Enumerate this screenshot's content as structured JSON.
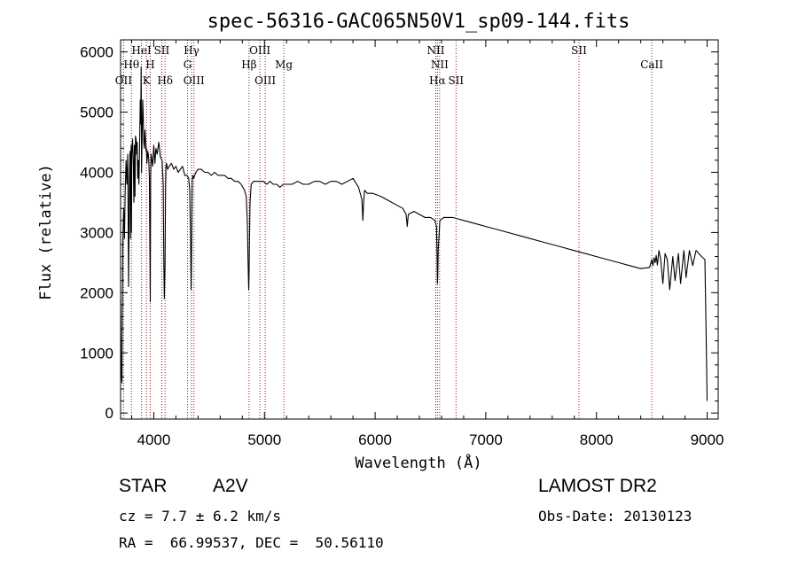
{
  "chart_data": {
    "type": "line",
    "title": "spec-56316-GAC065N50V1_sp09-144.fits",
    "xlabel": "Wavelength (Å)",
    "ylabel": "Flux (relative)",
    "xlim": [
      3700,
      9100
    ],
    "ylim": [
      -100,
      6200
    ],
    "xticks": [
      4000,
      5000,
      6000,
      7000,
      8000,
      9000
    ],
    "yticks": [
      0,
      1000,
      2000,
      3000,
      4000,
      5000,
      6000
    ],
    "grid": false,
    "line_color": "#000000",
    "marker_color": "#8b1a1a",
    "series": [
      {
        "x": [
          3700,
          3705,
          3712,
          3720,
          3728,
          3735,
          3742,
          3750,
          3757,
          3765,
          3772,
          3780,
          3786,
          3790,
          3795,
          3798,
          3802,
          3808,
          3815,
          3820,
          3825,
          3830,
          3835,
          3840,
          3845,
          3850,
          3855,
          3860,
          3866,
          3872,
          3878,
          3882,
          3886,
          3890,
          3895,
          3900,
          3905,
          3910,
          3915,
          3920,
          3925,
          3930,
          3934,
          3938,
          3942,
          3946,
          3950,
          3955,
          3960,
          3965,
          3968,
          3970,
          3972,
          3976,
          3980,
          3990,
          4000,
          4010,
          4020,
          4030,
          4045,
          4060,
          4075,
          4085,
          4090,
          4095,
          4101,
          4106,
          4110,
          4115,
          4125,
          4140,
          4160,
          4180,
          4200,
          4220,
          4240,
          4260,
          4280,
          4300,
          4315,
          4325,
          4333,
          4337,
          4340,
          4343,
          4347,
          4352,
          4360,
          4380,
          4400,
          4430,
          4460,
          4490,
          4520,
          4550,
          4580,
          4610,
          4640,
          4670,
          4700,
          4730,
          4760,
          4790,
          4820,
          4835,
          4845,
          4852,
          4858,
          4861,
          4864,
          4870,
          4880,
          4900,
          4930,
          4960,
          4990,
          5020,
          5050,
          5080,
          5110,
          5140,
          5170,
          5200,
          5250,
          5300,
          5350,
          5400,
          5450,
          5500,
          5550,
          5600,
          5650,
          5700,
          5750,
          5800,
          5850,
          5880,
          5890,
          5896,
          5905,
          5930,
          5980,
          6050,
          6100,
          6150,
          6200,
          6250,
          6280,
          6290,
          6300,
          6350,
          6400,
          6450,
          6500,
          6540,
          6555,
          6560,
          6563,
          6566,
          6570,
          6585,
          6620,
          6700,
          6800,
          6900,
          7000,
          7100,
          7200,
          7300,
          7400,
          7500,
          7600,
          7700,
          7800,
          7900,
          8000,
          8100,
          8200,
          8300,
          8400,
          8480,
          8500,
          8510,
          8520,
          8530,
          8540,
          8550,
          8565,
          8580,
          8600,
          8620,
          8640,
          8662,
          8690,
          8710,
          8740,
          8760,
          8790,
          8810,
          8840,
          8870,
          8900,
          8950,
          8980,
          8990,
          9000
        ],
        "y": [
          1900,
          700,
          500,
          2800,
          3400,
          2900,
          3700,
          4200,
          3800,
          4300,
          2100,
          3900,
          4350,
          2900,
          4450,
          3000,
          4300,
          4550,
          4150,
          3500,
          4450,
          3600,
          4600,
          4550,
          4300,
          4500,
          3900,
          4200,
          3800,
          4500,
          5200,
          4800,
          5750,
          4000,
          4650,
          5200,
          4900,
          4500,
          4400,
          4700,
          4550,
          4350,
          4400,
          4150,
          4250,
          4350,
          4300,
          4200,
          3900,
          2600,
          1850,
          2900,
          3900,
          4300,
          4250,
          4100,
          4450,
          4150,
          4400,
          4300,
          4500,
          4250,
          4200,
          3800,
          2600,
          1900,
          2400,
          3700,
          4100,
          4150,
          4050,
          4100,
          4150,
          4050,
          4100,
          4000,
          4050,
          4100,
          3950,
          3950,
          3900,
          3700,
          2800,
          2050,
          2350,
          3000,
          3850,
          3950,
          3900,
          4000,
          4050,
          4050,
          4000,
          4000,
          3950,
          4000,
          3950,
          3950,
          3950,
          3900,
          3900,
          3850,
          3850,
          3800,
          3700,
          3600,
          3200,
          2500,
          2050,
          2300,
          2800,
          3500,
          3800,
          3850,
          3850,
          3850,
          3850,
          3800,
          3850,
          3800,
          3800,
          3750,
          3800,
          3800,
          3800,
          3850,
          3800,
          3800,
          3850,
          3850,
          3800,
          3850,
          3850,
          3800,
          3850,
          3900,
          3750,
          3550,
          3200,
          3500,
          3700,
          3650,
          3650,
          3600,
          3550,
          3500,
          3450,
          3400,
          3300,
          3100,
          3300,
          3350,
          3300,
          3250,
          3250,
          3200,
          3100,
          2600,
          2150,
          2250,
          2700,
          3200,
          3250,
          3250,
          3200,
          3150,
          3100,
          3050,
          3000,
          2950,
          2900,
          2850,
          2800,
          2750,
          2700,
          2650,
          2600,
          2550,
          2500,
          2450,
          2400,
          2420,
          2550,
          2450,
          2580,
          2500,
          2620,
          2460,
          2700,
          2560,
          2150,
          2650,
          2550,
          2050,
          2600,
          2200,
          2650,
          2150,
          2700,
          2250,
          2700,
          2450,
          2700,
          2600,
          2550,
          1400,
          200
        ]
      }
    ],
    "line_markers": [
      {
        "x": 3727,
        "label": "OII",
        "row": 3
      },
      {
        "x": 3798,
        "label": "Hθ",
        "row": 2
      },
      {
        "x": 3889,
        "label": "HeI",
        "row": 1
      },
      {
        "x": 3934,
        "label": "K",
        "row": 3
      },
      {
        "x": 3968,
        "label": "H",
        "row": 2
      },
      {
        "x": 4072,
        "label": "SII",
        "row": 1
      },
      {
        "x": 4102,
        "label": "Hδ",
        "row": 3
      },
      {
        "x": 4305,
        "label": "G",
        "row": 2
      },
      {
        "x": 4341,
        "label": "Hγ",
        "row": 1
      },
      {
        "x": 4363,
        "label": "OIII",
        "row": 3
      },
      {
        "x": 4861,
        "label": "Hβ",
        "row": 2
      },
      {
        "x": 4959,
        "label": "OIII",
        "row": 1
      },
      {
        "x": 5007,
        "label": "OIII",
        "row": 3
      },
      {
        "x": 5175,
        "label": "Mg",
        "row": 2
      },
      {
        "x": 6548,
        "label": "NII",
        "row": 1
      },
      {
        "x": 6563,
        "label": "Hα",
        "row": 3
      },
      {
        "x": 6583,
        "label": "NII",
        "row": 2
      },
      {
        "x": 6731,
        "label": "SII",
        "row": 3
      },
      {
        "x": 7842,
        "label": "SII",
        "row": 1
      },
      {
        "x": 8500,
        "label": "CaII",
        "row": 2
      }
    ]
  },
  "info": {
    "class": "STAR",
    "subclass": "A2V",
    "survey": "LAMOST DR2",
    "cz": "cz = 7.7 ± 6.2 km/s",
    "obs_date": "Obs-Date: 20130123",
    "radec": "RA =  66.99537, DEC =  50.56110"
  }
}
